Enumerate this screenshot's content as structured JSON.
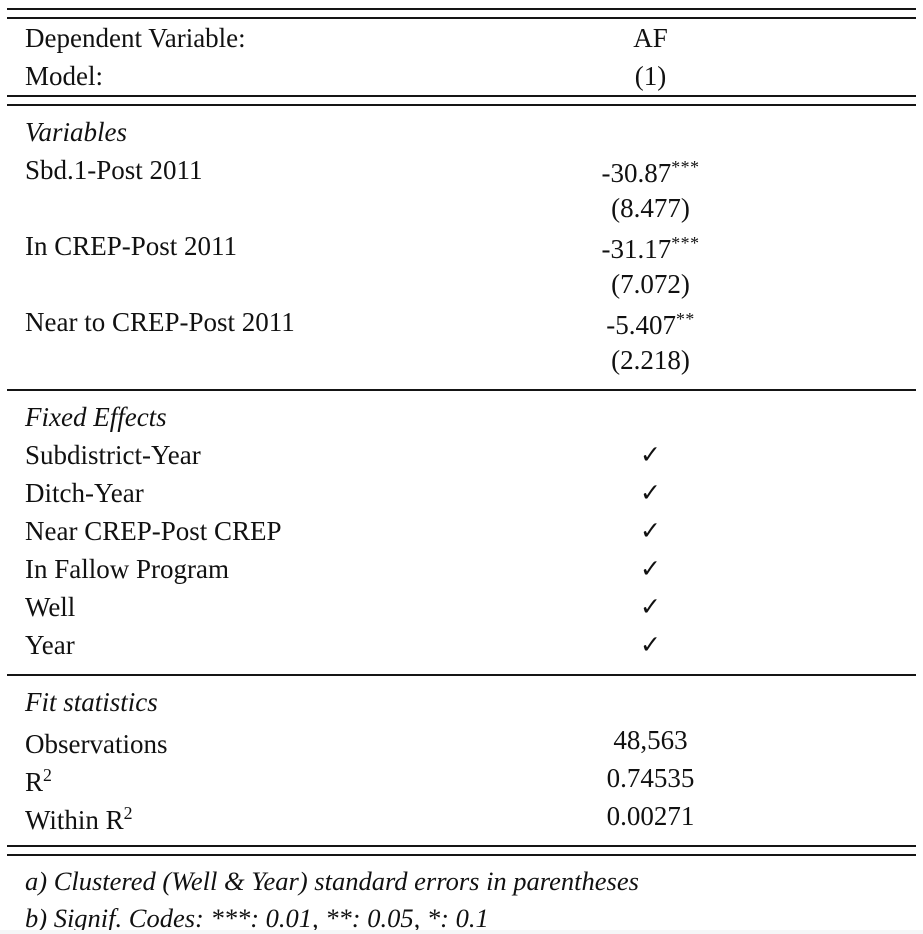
{
  "table": {
    "header": {
      "dependent_variable_label": "Dependent Variable:",
      "dependent_variable_value": "AF",
      "model_label": "Model:",
      "model_value": "(1)"
    },
    "variables": {
      "section_label": "Variables",
      "rows": [
        {
          "label": "Sbd.1-Post 2011",
          "coef": "-30.87",
          "stars": "***",
          "se": "(8.477)"
        },
        {
          "label": "In CREP-Post 2011",
          "coef": "-31.17",
          "stars": "***",
          "se": "(7.072)"
        },
        {
          "label": "Near to CREP-Post 2011",
          "coef": "-5.407",
          "stars": "**",
          "se": "(2.218)"
        }
      ]
    },
    "fixed_effects": {
      "section_label": "Fixed Effects",
      "check_glyph": "✓",
      "rows": [
        {
          "label": "Subdistrict-Year"
        },
        {
          "label": "Ditch-Year"
        },
        {
          "label": "Near CREP-Post CREP"
        },
        {
          "label": "In Fallow Program"
        },
        {
          "label": "Well"
        },
        {
          "label": "Year"
        }
      ]
    },
    "fit_statistics": {
      "section_label": "Fit statistics",
      "rows": [
        {
          "label": "Observations",
          "label_sup": "",
          "value": "48,563"
        },
        {
          "label": "R",
          "label_sup": "2",
          "value": "0.74535"
        },
        {
          "label": "Within R",
          "label_sup": "2",
          "value": "0.00271"
        }
      ]
    },
    "notes": [
      "a) Clustered (Well & Year) standard errors in parentheses",
      "b) Signif. Codes: ***: 0.01, **: 0.05, *: 0.1"
    ]
  }
}
